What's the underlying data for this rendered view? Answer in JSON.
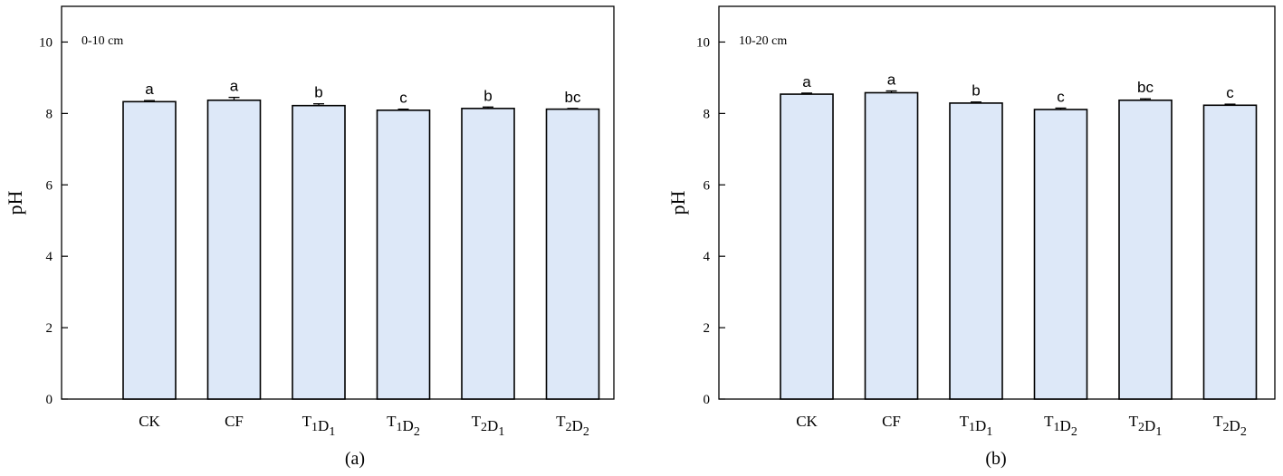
{
  "chart_data": [
    {
      "type": "bar",
      "caption": "(a)",
      "title": "0-10 cm",
      "ylabel": "pH",
      "xlabel": "",
      "ylim": [
        0,
        11
      ],
      "yticks": [
        0,
        2,
        4,
        6,
        8,
        10
      ],
      "grid": false,
      "categories": [
        {
          "base": "CK",
          "subs": []
        },
        {
          "base": "CF",
          "subs": []
        },
        {
          "base": "T",
          "subs": [
            [
              "T",
              "1"
            ],
            [
              "D",
              "1"
            ]
          ]
        },
        {
          "base": "T",
          "subs": [
            [
              "T",
              "1"
            ],
            [
              "D",
              "2"
            ]
          ]
        },
        {
          "base": "T",
          "subs": [
            [
              "T",
              "2"
            ],
            [
              "D",
              "1"
            ]
          ]
        },
        {
          "base": "T",
          "subs": [
            [
              "T",
              "2"
            ],
            [
              "D",
              "2"
            ]
          ]
        }
      ],
      "values": [
        8.33,
        8.37,
        8.22,
        8.09,
        8.14,
        8.12
      ],
      "errors": [
        0.03,
        0.08,
        0.05,
        0.03,
        0.04,
        0.02
      ],
      "significance": [
        "a",
        "a",
        "b",
        "c",
        "b",
        "bc"
      ],
      "bar_color": "#dde8f8"
    },
    {
      "type": "bar",
      "caption": "(b)",
      "title": "10-20 cm",
      "ylabel": "pH",
      "xlabel": "",
      "ylim": [
        0,
        11
      ],
      "yticks": [
        0,
        2,
        4,
        6,
        8,
        10
      ],
      "grid": false,
      "categories": [
        {
          "base": "CK",
          "subs": []
        },
        {
          "base": "CF",
          "subs": []
        },
        {
          "base": "T",
          "subs": [
            [
              "T",
              "1"
            ],
            [
              "D",
              "1"
            ]
          ]
        },
        {
          "base": "T",
          "subs": [
            [
              "T",
              "1"
            ],
            [
              "D",
              "2"
            ]
          ]
        },
        {
          "base": "T",
          "subs": [
            [
              "T",
              "2"
            ],
            [
              "D",
              "1"
            ]
          ]
        },
        {
          "base": "T",
          "subs": [
            [
              "T",
              "2"
            ],
            [
              "D",
              "2"
            ]
          ]
        }
      ],
      "values": [
        8.54,
        8.58,
        8.29,
        8.11,
        8.37,
        8.23
      ],
      "errors": [
        0.03,
        0.05,
        0.03,
        0.04,
        0.04,
        0.03
      ],
      "significance": [
        "a",
        "a",
        "b",
        "c",
        "bc",
        "c"
      ],
      "bar_color": "#dde8f8"
    }
  ]
}
